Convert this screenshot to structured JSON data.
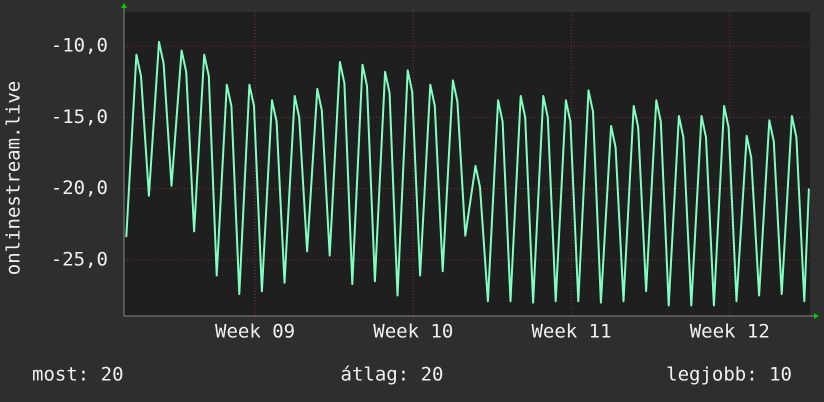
{
  "chart_data": {
    "type": "line",
    "ylabel": "onlinestream.live",
    "x": [
      0.1,
      0.55,
      0.75,
      1.1,
      1.55,
      1.75,
      2.1,
      2.55,
      2.75,
      3.1,
      3.55,
      3.75,
      4.1,
      4.55,
      4.75,
      5.1,
      5.55,
      5.75,
      6.1,
      6.55,
      6.75,
      7.1,
      7.55,
      7.75,
      8.1,
      8.55,
      8.75,
      9.1,
      9.55,
      9.75,
      10.1,
      10.55,
      10.75,
      11.1,
      11.55,
      11.75,
      12.1,
      12.55,
      12.75,
      13.1,
      13.55,
      13.75,
      14.1,
      14.55,
      14.75,
      15.1,
      15.55,
      15.75,
      16.1,
      16.55,
      16.75,
      17.1,
      17.55,
      17.75,
      18.1,
      18.55,
      18.75,
      19.1,
      19.55,
      19.75,
      20.1,
      20.55,
      20.75,
      21.1,
      21.55,
      21.75,
      22.1,
      22.55,
      22.75,
      23.1,
      23.55,
      23.75,
      24.1,
      24.55,
      24.75,
      25.1,
      25.55,
      25.75,
      26.1,
      26.55,
      26.75,
      27.1,
      27.55,
      27.75,
      28.1,
      28.55,
      28.75,
      29.1,
      29.55,
      29.75,
      30.1,
      30.3
    ],
    "series": [
      {
        "color": "#80ffc0",
        "values": [
          -23.4,
          -10.6,
          -12.1,
          -20.5,
          -9.7,
          -11.2,
          -19.8,
          -10.3,
          -11.8,
          -23.0,
          -10.6,
          -12.1,
          -26.1,
          -12.7,
          -14.2,
          -27.4,
          -12.7,
          -14.2,
          -27.2,
          -13.8,
          -15.3,
          -26.6,
          -13.5,
          -15.0,
          -24.4,
          -13.0,
          -14.5,
          -24.7,
          -11.1,
          -12.6,
          -26.7,
          -11.3,
          -12.8,
          -26.5,
          -11.8,
          -13.3,
          -27.5,
          -11.7,
          -13.2,
          -26.1,
          -12.7,
          -14.2,
          -25.8,
          -12.4,
          -13.9,
          -23.3,
          -18.4,
          -19.9,
          -27.9,
          -13.8,
          -15.3,
          -27.9,
          -13.5,
          -15.0,
          -28.0,
          -13.5,
          -15.0,
          -27.9,
          -13.8,
          -15.3,
          -27.9,
          -13.1,
          -14.6,
          -28.0,
          -15.6,
          -17.1,
          -27.9,
          -14.2,
          -15.7,
          -27.2,
          -13.8,
          -15.3,
          -28.2,
          -14.9,
          -16.4,
          -28.2,
          -14.9,
          -16.4,
          -28.2,
          -14.2,
          -15.7,
          -27.9,
          -16.3,
          -17.8,
          -27.5,
          -15.2,
          -16.7,
          -27.4,
          -14.9,
          -16.4,
          -27.9,
          -20.0
        ]
      }
    ],
    "xlim": [
      0,
      30.35
    ],
    "xticks": [
      {
        "value": 5.8,
        "label": "Week 09"
      },
      {
        "value": 12.8,
        "label": "Week 10"
      },
      {
        "value": 19.8,
        "label": "Week 11"
      },
      {
        "value": 26.8,
        "label": "Week 12"
      }
    ],
    "ylim": [
      -28.94,
      -7.6
    ],
    "yticks": [
      {
        "value": -10,
        "label": "-10,0"
      },
      {
        "value": -15,
        "label": "-15,0"
      },
      {
        "value": -20,
        "label": "-20,0"
      },
      {
        "value": -25,
        "label": "-25,0"
      }
    ],
    "grid": true,
    "grid_color": "#7a3030",
    "stats": [
      "most: 20",
      "átlag: 20",
      "legjobb: 10"
    ]
  }
}
